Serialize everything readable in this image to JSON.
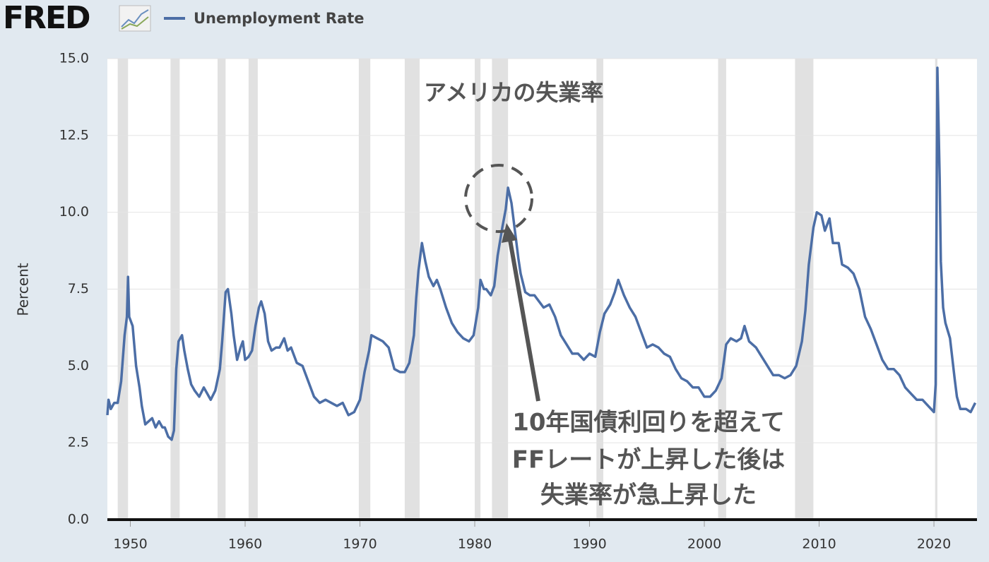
{
  "chart_data": {
    "type": "line",
    "logo": "FRED",
    "title": "アメリカの失業率",
    "ylabel": "Percent",
    "annotations": [
      "10年国債利回りを超えて",
      "FFレートが上昇した後は",
      "失業率が急上昇した"
    ],
    "xlim": [
      1948,
      2023.75
    ],
    "xticks": [
      1950,
      1960,
      1970,
      1980,
      1990,
      2000,
      2010,
      2020
    ],
    "ylim": [
      0,
      15
    ],
    "yticks": [
      {
        "value": 0,
        "label": "0.0"
      },
      {
        "value": 2.5,
        "label": "2.5"
      },
      {
        "value": 5,
        "label": "5.0"
      },
      {
        "value": 7.5,
        "label": "7.5"
      },
      {
        "value": 10,
        "label": "10.0"
      },
      {
        "value": 12.5,
        "label": "12.5"
      },
      {
        "value": 15,
        "label": "15.0"
      }
    ],
    "grid": true,
    "recessions": [
      {
        "start": 1948.9,
        "end": 1949.8
      },
      {
        "start": 1953.5,
        "end": 1954.3
      },
      {
        "start": 1957.6,
        "end": 1958.3
      },
      {
        "start": 1960.3,
        "end": 1961.1
      },
      {
        "start": 1969.9,
        "end": 1970.9
      },
      {
        "start": 1973.9,
        "end": 1975.2
      },
      {
        "start": 1980.0,
        "end": 1980.5
      },
      {
        "start": 1981.5,
        "end": 1982.9
      },
      {
        "start": 1990.6,
        "end": 1991.2
      },
      {
        "start": 2001.2,
        "end": 2001.9
      },
      {
        "start": 2007.9,
        "end": 2009.5
      },
      {
        "start": 2020.1,
        "end": 2020.3
      }
    ],
    "recession_color": "#e1e1e1",
    "x": [
      1948.0,
      1948.1,
      1948.3,
      1948.6,
      1948.9,
      1949.2,
      1949.5,
      1949.7,
      1949.8,
      1949.9,
      1950.2,
      1950.5,
      1950.8,
      1951.0,
      1951.3,
      1951.6,
      1951.9,
      1952.2,
      1952.5,
      1952.8,
      1953.0,
      1953.3,
      1953.6,
      1953.8,
      1954.0,
      1954.2,
      1954.5,
      1954.7,
      1955.0,
      1955.3,
      1955.6,
      1956.0,
      1956.4,
      1956.7,
      1957.0,
      1957.4,
      1957.8,
      1958.0,
      1958.3,
      1958.5,
      1958.8,
      1959.0,
      1959.3,
      1959.6,
      1959.8,
      1960.0,
      1960.3,
      1960.6,
      1960.9,
      1961.2,
      1961.4,
      1961.7,
      1962.0,
      1962.3,
      1962.7,
      1963.0,
      1963.4,
      1963.7,
      1964.0,
      1964.5,
      1965.0,
      1965.5,
      1966.0,
      1966.5,
      1967.0,
      1967.5,
      1968.0,
      1968.5,
      1969.0,
      1969.5,
      1970.0,
      1970.4,
      1970.8,
      1971.0,
      1971.5,
      1972.0,
      1972.5,
      1973.0,
      1973.5,
      1973.9,
      1974.3,
      1974.7,
      1974.9,
      1975.1,
      1975.4,
      1975.7,
      1976.0,
      1976.4,
      1976.7,
      1977.0,
      1977.5,
      1978.0,
      1978.5,
      1979.0,
      1979.5,
      1979.9,
      1980.3,
      1980.5,
      1980.8,
      1981.0,
      1981.4,
      1981.7,
      1982.0,
      1982.4,
      1982.7,
      1982.9,
      1983.2,
      1983.5,
      1983.8,
      1984.0,
      1984.4,
      1984.8,
      1985.2,
      1985.6,
      1986.0,
      1986.5,
      1987.0,
      1987.5,
      1988.0,
      1988.5,
      1989.0,
      1989.5,
      1990.0,
      1990.5,
      1990.9,
      1991.3,
      1991.8,
      1992.2,
      1992.5,
      1993.0,
      1993.5,
      1994.0,
      1994.5,
      1995.0,
      1995.5,
      1996.0,
      1996.5,
      1997.0,
      1997.5,
      1998.0,
      1998.5,
      1999.0,
      1999.5,
      2000.0,
      2000.5,
      2001.0,
      2001.5,
      2001.9,
      2002.3,
      2002.8,
      2003.2,
      2003.5,
      2003.9,
      2004.5,
      2005.0,
      2005.5,
      2006.0,
      2006.5,
      2007.0,
      2007.5,
      2008.0,
      2008.5,
      2008.8,
      2009.1,
      2009.5,
      2009.8,
      2010.2,
      2010.5,
      2010.9,
      2011.2,
      2011.7,
      2012.0,
      2012.5,
      2013.0,
      2013.5,
      2014.0,
      2014.5,
      2015.0,
      2015.5,
      2016.0,
      2016.5,
      2017.0,
      2017.5,
      2018.0,
      2018.5,
      2019.0,
      2019.5,
      2020.0,
      2020.15,
      2020.3,
      2020.5,
      2020.6,
      2020.8,
      2021.0,
      2021.4,
      2021.8,
      2022.0,
      2022.3,
      2022.8,
      2023.2,
      2023.6
    ],
    "series": [
      {
        "name": "Unemployment Rate",
        "color": "#4c6ea6",
        "values": [
          3.4,
          3.9,
          3.6,
          3.8,
          3.8,
          4.5,
          6.0,
          6.6,
          7.9,
          6.6,
          6.3,
          5.0,
          4.3,
          3.7,
          3.1,
          3.2,
          3.3,
          3.0,
          3.2,
          3.0,
          3.0,
          2.7,
          2.6,
          2.9,
          4.9,
          5.8,
          6.0,
          5.5,
          4.9,
          4.4,
          4.2,
          4.0,
          4.3,
          4.1,
          3.9,
          4.2,
          4.9,
          5.8,
          7.4,
          7.5,
          6.7,
          6.0,
          5.2,
          5.6,
          5.8,
          5.2,
          5.3,
          5.5,
          6.3,
          6.9,
          7.1,
          6.7,
          5.8,
          5.5,
          5.6,
          5.6,
          5.9,
          5.5,
          5.6,
          5.1,
          5.0,
          4.5,
          4.0,
          3.8,
          3.9,
          3.8,
          3.7,
          3.8,
          3.4,
          3.5,
          3.9,
          4.8,
          5.5,
          6.0,
          5.9,
          5.8,
          5.6,
          4.9,
          4.8,
          4.8,
          5.1,
          6.0,
          7.2,
          8.1,
          9.0,
          8.4,
          7.9,
          7.6,
          7.8,
          7.5,
          6.9,
          6.4,
          6.1,
          5.9,
          5.8,
          6.0,
          6.9,
          7.8,
          7.5,
          7.5,
          7.3,
          7.6,
          8.6,
          9.5,
          10.1,
          10.8,
          10.3,
          9.4,
          8.5,
          8.0,
          7.4,
          7.3,
          7.3,
          7.1,
          6.9,
          7.0,
          6.6,
          6.0,
          5.7,
          5.4,
          5.4,
          5.2,
          5.4,
          5.3,
          6.1,
          6.7,
          7.0,
          7.4,
          7.8,
          7.3,
          6.9,
          6.6,
          6.1,
          5.6,
          5.7,
          5.6,
          5.4,
          5.3,
          4.9,
          4.6,
          4.5,
          4.3,
          4.3,
          4.0,
          4.0,
          4.2,
          4.6,
          5.7,
          5.9,
          5.8,
          5.9,
          6.3,
          5.8,
          5.6,
          5.3,
          5.0,
          4.7,
          4.7,
          4.6,
          4.7,
          5.0,
          5.8,
          6.8,
          8.3,
          9.5,
          10.0,
          9.9,
          9.4,
          9.8,
          9.0,
          9.0,
          8.3,
          8.2,
          8.0,
          7.5,
          6.6,
          6.2,
          5.7,
          5.2,
          4.9,
          4.9,
          4.7,
          4.3,
          4.1,
          3.9,
          3.9,
          3.7,
          3.5,
          4.4,
          14.7,
          11.1,
          8.4,
          6.9,
          6.4,
          5.9,
          4.6,
          4.0,
          3.6,
          3.6,
          3.5,
          3.8
        ]
      }
    ]
  }
}
